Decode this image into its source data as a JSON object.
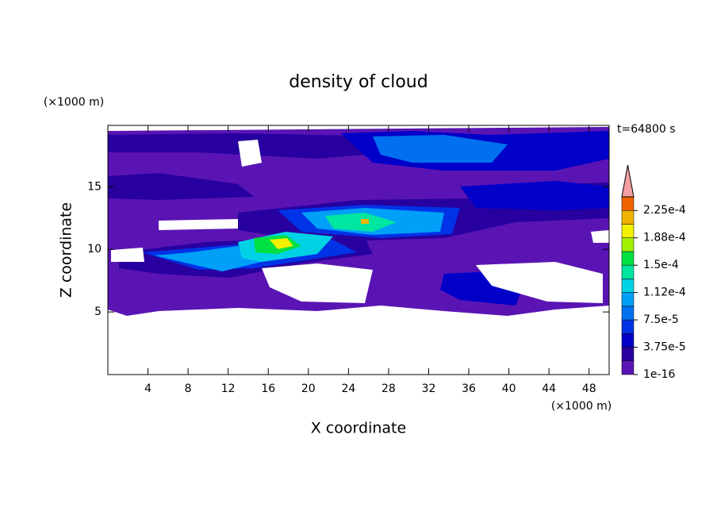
{
  "chart_data": {
    "type": "contour",
    "title": "density of cloud",
    "x_label": "X coordinate",
    "y_label": "Z coordinate",
    "x_unit": "(×1000 m)",
    "y_unit": "(×1000 m)",
    "time_label": "t=64800 s",
    "xlim": [
      0,
      50
    ],
    "xticks": [
      4,
      8,
      12,
      16,
      20,
      24,
      28,
      32,
      36,
      40,
      44,
      48
    ],
    "ylim": [
      0,
      19.9
    ],
    "yticks": [
      5,
      10,
      15
    ],
    "colorbar": {
      "clim": [
        1e-16,
        0.00024375
      ],
      "levels": [
        1e-16,
        1.875e-05,
        3.75e-05,
        5.625e-05,
        7.5e-05,
        9.375e-05,
        0.0001125,
        0.00013125,
        0.00015,
        0.00016875,
        0.0001875,
        0.00020625,
        0.000225
      ],
      "colors": [
        "#5a14b4",
        "#2800a0",
        "#0000c8",
        "#0032e6",
        "#0070f0",
        "#00a0f8",
        "#00d2e6",
        "#00e6a0",
        "#00e040",
        "#a0f000",
        "#f0f000",
        "#f0b400",
        "#f06400"
      ],
      "extend_color": "#f4a0a0",
      "ticks": [
        {
          "value": 1e-16,
          "label": "1e-16"
        },
        {
          "value": 3.75e-05,
          "label": "3.75e-5"
        },
        {
          "value": 7.5e-05,
          "label": "7.5e-5"
        },
        {
          "value": 0.0001125,
          "label": "1.12e-4"
        },
        {
          "value": 0.00015,
          "label": "1.5e-4"
        },
        {
          "value": 0.0001875,
          "label": "1.88e-4"
        },
        {
          "value": 0.000225,
          "label": "2.25e-4"
        }
      ]
    }
  }
}
